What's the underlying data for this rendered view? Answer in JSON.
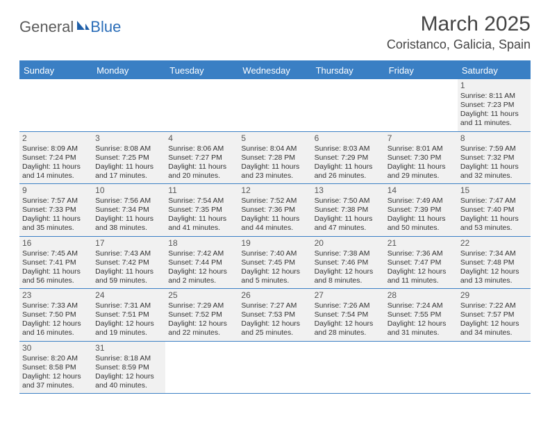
{
  "logo": {
    "part1": "General",
    "part2": "Blue"
  },
  "title": "March 2025",
  "location": "Coristanco, Galicia, Spain",
  "colors": {
    "header_bg": "#3a7fc4",
    "header_text": "#ffffff",
    "cell_bg": "#f1f1f1",
    "page_bg": "#ffffff",
    "text": "#333333",
    "logo_gray": "#5a5a5a",
    "logo_blue": "#2a6db8"
  },
  "typography": {
    "title_fontsize": 30,
    "location_fontsize": 18,
    "dayheader_fontsize": 13,
    "cell_fontsize": 10.5,
    "daynum_fontsize": 12
  },
  "day_names": [
    "Sunday",
    "Monday",
    "Tuesday",
    "Wednesday",
    "Thursday",
    "Friday",
    "Saturday"
  ],
  "weeks": [
    [
      null,
      null,
      null,
      null,
      null,
      null,
      {
        "n": "1",
        "sunrise": "8:11 AM",
        "sunset": "7:23 PM",
        "daylight": "11 hours and 11 minutes."
      }
    ],
    [
      {
        "n": "2",
        "sunrise": "8:09 AM",
        "sunset": "7:24 PM",
        "daylight": "11 hours and 14 minutes."
      },
      {
        "n": "3",
        "sunrise": "8:08 AM",
        "sunset": "7:25 PM",
        "daylight": "11 hours and 17 minutes."
      },
      {
        "n": "4",
        "sunrise": "8:06 AM",
        "sunset": "7:27 PM",
        "daylight": "11 hours and 20 minutes."
      },
      {
        "n": "5",
        "sunrise": "8:04 AM",
        "sunset": "7:28 PM",
        "daylight": "11 hours and 23 minutes."
      },
      {
        "n": "6",
        "sunrise": "8:03 AM",
        "sunset": "7:29 PM",
        "daylight": "11 hours and 26 minutes."
      },
      {
        "n": "7",
        "sunrise": "8:01 AM",
        "sunset": "7:30 PM",
        "daylight": "11 hours and 29 minutes."
      },
      {
        "n": "8",
        "sunrise": "7:59 AM",
        "sunset": "7:32 PM",
        "daylight": "11 hours and 32 minutes."
      }
    ],
    [
      {
        "n": "9",
        "sunrise": "7:57 AM",
        "sunset": "7:33 PM",
        "daylight": "11 hours and 35 minutes."
      },
      {
        "n": "10",
        "sunrise": "7:56 AM",
        "sunset": "7:34 PM",
        "daylight": "11 hours and 38 minutes."
      },
      {
        "n": "11",
        "sunrise": "7:54 AM",
        "sunset": "7:35 PM",
        "daylight": "11 hours and 41 minutes."
      },
      {
        "n": "12",
        "sunrise": "7:52 AM",
        "sunset": "7:36 PM",
        "daylight": "11 hours and 44 minutes."
      },
      {
        "n": "13",
        "sunrise": "7:50 AM",
        "sunset": "7:38 PM",
        "daylight": "11 hours and 47 minutes."
      },
      {
        "n": "14",
        "sunrise": "7:49 AM",
        "sunset": "7:39 PM",
        "daylight": "11 hours and 50 minutes."
      },
      {
        "n": "15",
        "sunrise": "7:47 AM",
        "sunset": "7:40 PM",
        "daylight": "11 hours and 53 minutes."
      }
    ],
    [
      {
        "n": "16",
        "sunrise": "7:45 AM",
        "sunset": "7:41 PM",
        "daylight": "11 hours and 56 minutes."
      },
      {
        "n": "17",
        "sunrise": "7:43 AM",
        "sunset": "7:42 PM",
        "daylight": "11 hours and 59 minutes."
      },
      {
        "n": "18",
        "sunrise": "7:42 AM",
        "sunset": "7:44 PM",
        "daylight": "12 hours and 2 minutes."
      },
      {
        "n": "19",
        "sunrise": "7:40 AM",
        "sunset": "7:45 PM",
        "daylight": "12 hours and 5 minutes."
      },
      {
        "n": "20",
        "sunrise": "7:38 AM",
        "sunset": "7:46 PM",
        "daylight": "12 hours and 8 minutes."
      },
      {
        "n": "21",
        "sunrise": "7:36 AM",
        "sunset": "7:47 PM",
        "daylight": "12 hours and 11 minutes."
      },
      {
        "n": "22",
        "sunrise": "7:34 AM",
        "sunset": "7:48 PM",
        "daylight": "12 hours and 13 minutes."
      }
    ],
    [
      {
        "n": "23",
        "sunrise": "7:33 AM",
        "sunset": "7:50 PM",
        "daylight": "12 hours and 16 minutes."
      },
      {
        "n": "24",
        "sunrise": "7:31 AM",
        "sunset": "7:51 PM",
        "daylight": "12 hours and 19 minutes."
      },
      {
        "n": "25",
        "sunrise": "7:29 AM",
        "sunset": "7:52 PM",
        "daylight": "12 hours and 22 minutes."
      },
      {
        "n": "26",
        "sunrise": "7:27 AM",
        "sunset": "7:53 PM",
        "daylight": "12 hours and 25 minutes."
      },
      {
        "n": "27",
        "sunrise": "7:26 AM",
        "sunset": "7:54 PM",
        "daylight": "12 hours and 28 minutes."
      },
      {
        "n": "28",
        "sunrise": "7:24 AM",
        "sunset": "7:55 PM",
        "daylight": "12 hours and 31 minutes."
      },
      {
        "n": "29",
        "sunrise": "7:22 AM",
        "sunset": "7:57 PM",
        "daylight": "12 hours and 34 minutes."
      }
    ],
    [
      {
        "n": "30",
        "sunrise": "8:20 AM",
        "sunset": "8:58 PM",
        "daylight": "12 hours and 37 minutes."
      },
      {
        "n": "31",
        "sunrise": "8:18 AM",
        "sunset": "8:59 PM",
        "daylight": "12 hours and 40 minutes."
      },
      null,
      null,
      null,
      null,
      null
    ]
  ],
  "labels": {
    "sunrise": "Sunrise:",
    "sunset": "Sunset:",
    "daylight": "Daylight:"
  }
}
